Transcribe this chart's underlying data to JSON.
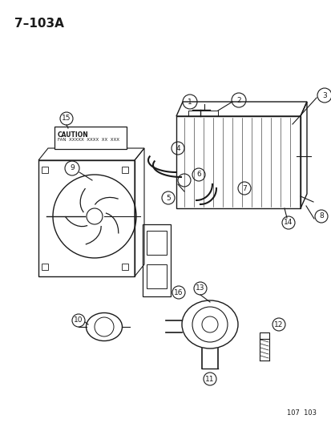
{
  "title": "7–103A",
  "footer": "107  103",
  "bg_color": "#ffffff",
  "line_color": "#1a1a1a",
  "caution_text": "CAUTION\nFAN  XXXXX  XXXX  XX  XXX",
  "part_numbers": [
    1,
    2,
    3,
    4,
    5,
    6,
    7,
    8,
    9,
    10,
    11,
    12,
    13,
    14,
    15,
    16
  ],
  "figsize": [
    4.14,
    5.33
  ],
  "dpi": 100
}
